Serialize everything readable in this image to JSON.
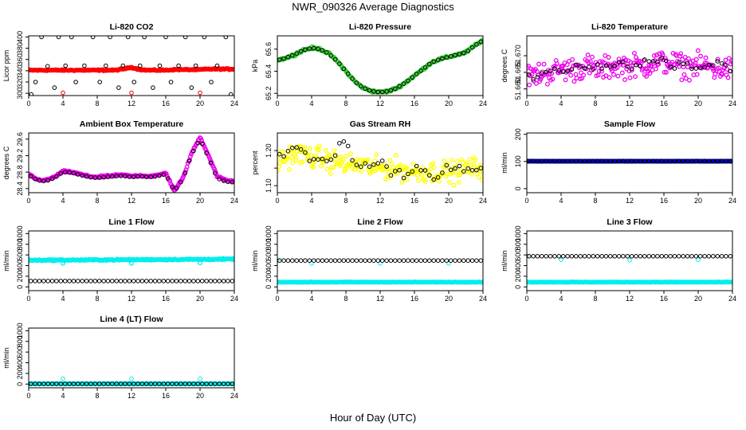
{
  "page": {
    "title": "NWR_090326  Average Diagnostics",
    "xlabel": "Hour of Day (UTC)"
  },
  "chart_data": [
    {
      "id": "co2",
      "type": "scatter",
      "title": "Li-820 CO2",
      "ylabel": "Licor ppm",
      "xlim": [
        0,
        24
      ],
      "ylim": [
        296,
        402
      ],
      "xticks": [
        0,
        4,
        8,
        12,
        16,
        20,
        24
      ],
      "yticks": [
        300,
        320,
        340,
        360,
        380,
        400
      ],
      "series": [
        {
          "color": "#ff0000",
          "style": "dense",
          "x_range": [
            0,
            24
          ],
          "y": [
            341,
            341,
            341,
            341,
            341,
            341,
            341,
            341,
            341,
            341,
            341,
            343,
            346,
            342,
            341,
            341,
            341,
            342,
            342,
            342,
            342,
            343,
            343,
            343,
            343
          ],
          "noise": 1
        },
        {
          "color": "#000000",
          "style": "open",
          "x": [
            0.3,
            0.8,
            1.5,
            2.2,
            3.0,
            3.5,
            4.3,
            5.0,
            5.5,
            6.5,
            7.5,
            8.3,
            9.0,
            9.5,
            10.5,
            11.0,
            11.6,
            12.3,
            13.0,
            13.5,
            14.5,
            15.3,
            16.0,
            16.6,
            17.5,
            18.3,
            19.0,
            19.5,
            20.5,
            21.3,
            22.0,
            23.0,
            23.6
          ],
          "y": [
            298,
            320,
            400,
            348,
            310,
            400,
            349,
            400,
            320,
            349,
            400,
            320,
            349,
            400,
            310,
            349,
            400,
            320,
            349,
            400,
            310,
            349,
            400,
            320,
            349,
            400,
            310,
            349,
            400,
            320,
            349,
            400,
            298
          ]
        },
        {
          "color": "#ff0000",
          "style": "open",
          "x": [
            4.0,
            12.0,
            20.0
          ],
          "y": [
            301,
            301,
            301
          ]
        }
      ]
    },
    {
      "id": "pressure",
      "type": "scatter",
      "title": "Li-820 Pressure",
      "ylabel": "kPa",
      "xlim": [
        0,
        24
      ],
      "ylim": [
        65.18,
        65.72
      ],
      "xticks": [
        0,
        4,
        8,
        12,
        16,
        20,
        24
      ],
      "yticks": [
        65.2,
        65.4,
        65.6
      ],
      "series": [
        {
          "color": "#33cc33",
          "style": "dense",
          "x_range": [
            0,
            24
          ],
          "y": [
            65.5,
            65.52,
            65.55,
            65.59,
            65.61,
            65.6,
            65.56,
            65.49,
            65.4,
            65.31,
            65.25,
            65.22,
            65.21,
            65.22,
            65.25,
            65.3,
            65.36,
            65.42,
            65.48,
            65.51,
            65.53,
            65.55,
            65.57,
            65.63,
            65.68
          ],
          "noise": 0.01
        },
        {
          "color": "#000000",
          "style": "line-open",
          "x_range": [
            0,
            24
          ],
          "y": [
            65.5,
            65.52,
            65.55,
            65.59,
            65.61,
            65.6,
            65.56,
            65.49,
            65.4,
            65.31,
            65.25,
            65.22,
            65.21,
            65.22,
            65.25,
            65.3,
            65.36,
            65.42,
            65.48,
            65.51,
            65.53,
            65.55,
            65.57,
            65.63,
            65.68
          ]
        }
      ]
    },
    {
      "id": "temp",
      "type": "scatter",
      "title": "Li-820 Temperature",
      "ylabel": "degrees C",
      "xlim": [
        0,
        24
      ],
      "ylim": [
        51.658,
        51.676
      ],
      "xticks": [
        0,
        4,
        8,
        12,
        16,
        20,
        24
      ],
      "yticks": [
        51.66,
        51.665,
        51.67
      ],
      "ytick_labels": [
        "51.660",
        "51.665",
        "51.670"
      ],
      "series": [
        {
          "color": "#ee00ee",
          "style": "dense",
          "x_range": [
            0,
            24
          ],
          "y": [
            51.664,
            51.664,
            51.665,
            51.665,
            51.666,
            51.666,
            51.666,
            51.667,
            51.666,
            51.666,
            51.667,
            51.667,
            51.667,
            51.667,
            51.667,
            51.668,
            51.668,
            51.668,
            51.667,
            51.667,
            51.667,
            51.667,
            51.666,
            51.666,
            51.666
          ],
          "noise": 0.0035
        },
        {
          "color": "#000000",
          "style": "line-open",
          "x_range": [
            0,
            24
          ],
          "y": [
            51.664,
            51.663,
            51.665,
            51.666,
            51.665,
            51.666,
            51.667,
            51.666,
            51.667,
            51.666,
            51.667,
            51.668,
            51.666,
            51.667,
            51.669,
            51.668,
            51.669,
            51.666,
            51.668,
            51.667,
            51.665,
            51.667,
            51.668,
            51.667,
            51.664
          ],
          "noise": 0.0009
        }
      ]
    },
    {
      "id": "ambient",
      "type": "scatter",
      "title": "Ambient Box Temperature",
      "ylabel": "degrees C",
      "xlim": [
        0,
        24
      ],
      "ylim": [
        28.3,
        29.75
      ],
      "xticks": [
        0,
        4,
        8,
        12,
        16,
        20,
        24
      ],
      "yticks": [
        28.4,
        28.8,
        29.2,
        29.6
      ],
      "series": [
        {
          "color": "#ee00ee",
          "style": "dense",
          "x_range": [
            0,
            24
          ],
          "y": [
            28.75,
            28.62,
            28.6,
            28.68,
            28.82,
            28.8,
            28.75,
            28.7,
            28.68,
            28.7,
            28.72,
            28.73,
            28.7,
            28.72,
            28.7,
            28.72,
            28.78,
            28.35,
            28.65,
            29.25,
            29.65,
            29.2,
            28.7,
            28.6,
            28.58
          ],
          "noise": 0.02
        },
        {
          "color": "#000000",
          "style": "line-open",
          "x_range": [
            0,
            24
          ],
          "y": [
            28.73,
            28.6,
            28.58,
            28.66,
            28.8,
            28.79,
            28.73,
            28.68,
            28.66,
            28.68,
            28.7,
            28.71,
            28.68,
            28.7,
            28.68,
            28.7,
            28.75,
            28.33,
            28.63,
            29.22,
            29.6,
            29.15,
            28.65,
            28.57,
            28.55
          ]
        }
      ]
    },
    {
      "id": "rh",
      "type": "scatter",
      "title": "Gas Stream RH",
      "ylabel": "percent",
      "xlim": [
        0,
        24
      ],
      "ylim": [
        1.08,
        1.25
      ],
      "xticks": [
        0,
        4,
        8,
        12,
        16,
        20,
        24
      ],
      "yticks": [
        1.1,
        1.15,
        1.2
      ],
      "ytick_labels": [
        "1.10",
        "",
        "1.20"
      ],
      "series": [
        {
          "color": "#ffff00",
          "style": "dense",
          "x_range": [
            0,
            24
          ],
          "y": [
            1.17,
            1.18,
            1.19,
            1.19,
            1.18,
            1.18,
            1.17,
            1.17,
            1.16,
            1.16,
            1.16,
            1.15,
            1.15,
            1.15,
            1.15,
            1.14,
            1.14,
            1.14,
            1.14,
            1.14,
            1.14,
            1.14,
            1.15,
            1.15,
            1.15
          ],
          "noise": 0.03
        },
        {
          "color": "#000000",
          "style": "line-open",
          "x_range": [
            0,
            24
          ],
          "y": [
            1.17,
            1.2,
            1.21,
            1.19,
            1.17,
            1.18,
            1.16,
            1.2,
            1.24,
            1.15,
            1.17,
            1.16,
            1.17,
            1.14,
            1.15,
            1.12,
            1.16,
            1.15,
            1.11,
            1.13,
            1.16,
            1.15,
            1.14,
            1.15,
            1.14
          ],
          "noise": 0.012
        }
      ]
    },
    {
      "id": "sample",
      "type": "scatter",
      "title": "Sample Flow",
      "ylabel": "ml/min",
      "xlim": [
        0,
        24
      ],
      "ylim": [
        -15,
        205
      ],
      "xticks": [
        0,
        4,
        8,
        12,
        16,
        20,
        24
      ],
      "yticks": [
        0,
        100,
        200
      ],
      "series": [
        {
          "color": "#0000cc",
          "style": "dense",
          "x_range": [
            0,
            24
          ],
          "y": [
            101,
            101
          ],
          "noise": 0.5
        },
        {
          "color": "#000000",
          "style": "open",
          "x_range": [
            0,
            24
          ],
          "y": [
            101,
            101
          ]
        }
      ]
    },
    {
      "id": "line1",
      "type": "scatter",
      "title": "Line 1 Flow",
      "ylabel": "ml/min",
      "xlim": [
        0,
        24
      ],
      "ylim": [
        -70,
        1050
      ],
      "xticks": [
        0,
        4,
        8,
        12,
        16,
        20,
        24
      ],
      "yticks": [
        0,
        200,
        400,
        600,
        800,
        1000
      ],
      "series": [
        {
          "color": "#00eeee",
          "style": "dense",
          "x_range": [
            0,
            24
          ],
          "y": [
            500,
            505,
            510,
            515,
            520
          ],
          "noise": 12,
          "dips": [
            [
              4,
              440
            ],
            [
              12,
              440
            ],
            [
              20,
              450
            ]
          ]
        },
        {
          "color": "#000000",
          "style": "open",
          "x_range": [
            0,
            24
          ],
          "y": [
            110,
            110
          ]
        }
      ]
    },
    {
      "id": "line2",
      "type": "scatter",
      "title": "Line 2 Flow",
      "ylabel": "ml/min",
      "xlim": [
        0,
        24
      ],
      "ylim": [
        -70,
        1050
      ],
      "xticks": [
        0,
        4,
        8,
        12,
        16,
        20,
        24
      ],
      "yticks": [
        0,
        200,
        400,
        600,
        800,
        1000
      ],
      "series": [
        {
          "color": "#00eeee",
          "style": "dense",
          "x_range": [
            0,
            24
          ],
          "y": [
            90,
            90
          ],
          "noise": 3
        },
        {
          "color": "#00eeee",
          "style": "open",
          "x": [
            0.0,
            4.0,
            12.0,
            20.0
          ],
          "y": [
            500,
            440,
            440,
            440
          ]
        },
        {
          "color": "#000000",
          "style": "open",
          "x_range": [
            0,
            24
          ],
          "y": [
            495,
            495
          ]
        }
      ]
    },
    {
      "id": "line3",
      "type": "scatter",
      "title": "Line 3 Flow",
      "ylabel": "ml/min",
      "xlim": [
        0,
        24
      ],
      "ylim": [
        -70,
        1050
      ],
      "xticks": [
        0,
        4,
        8,
        12,
        16,
        20,
        24
      ],
      "yticks": [
        0,
        200,
        400,
        600,
        800,
        1000
      ],
      "series": [
        {
          "color": "#00eeee",
          "style": "dense",
          "x_range": [
            0,
            24
          ],
          "y": [
            90,
            90
          ],
          "noise": 3
        },
        {
          "color": "#00eeee",
          "style": "open",
          "x": [
            0.0,
            4.0,
            12.0,
            20.0
          ],
          "y": [
            580,
            510,
            500,
            510
          ]
        },
        {
          "color": "#000000",
          "style": "open",
          "x_range": [
            0,
            24
          ],
          "y": [
            575,
            575
          ]
        }
      ]
    },
    {
      "id": "line4",
      "type": "scatter",
      "title": "Line 4 (LT) Flow",
      "ylabel": "ml/min",
      "xlim": [
        0,
        24
      ],
      "ylim": [
        -70,
        1050
      ],
      "xticks": [
        0,
        4,
        8,
        12,
        16,
        20,
        24
      ],
      "yticks": [
        0,
        200,
        400,
        600,
        800,
        1000
      ],
      "series": [
        {
          "color": "#00eeee",
          "style": "dense",
          "x_range": [
            0,
            24
          ],
          "y": [
            5,
            5
          ],
          "noise": 3
        },
        {
          "color": "#00eeee",
          "style": "open",
          "x": [
            4.0,
            12.0,
            20.0
          ],
          "y": [
            100,
            100,
            100
          ]
        },
        {
          "color": "#000000",
          "style": "open",
          "x_range": [
            0,
            24
          ],
          "y": [
            5,
            5
          ]
        }
      ]
    }
  ]
}
